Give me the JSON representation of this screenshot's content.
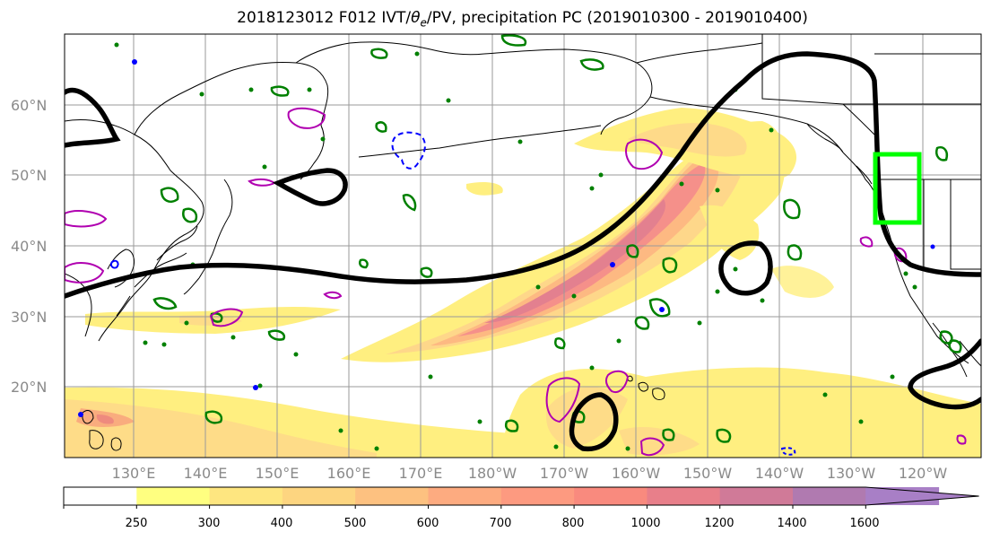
{
  "title": {
    "prefix": "2018123012 F012 IVT/",
    "theta": "θ",
    "theta_sub": "e",
    "suffix": "/PV, precipitation PC (2019010300 - 2019010400)"
  },
  "lat_labels": [
    "60°N",
    "50°N",
    "40°N",
    "30°N",
    "20°N"
  ],
  "lon_labels": [
    "130°E",
    "140°E",
    "150°E",
    "160°E",
    "170°E",
    "180°W",
    "170°W",
    "160°W",
    "150°W",
    "140°W",
    "130°W",
    "120°W"
  ],
  "colorbar": {
    "ticks": [
      "250",
      "300",
      "400",
      "500",
      "600",
      "700",
      "800",
      "1000",
      "1200",
      "1400",
      "1600"
    ],
    "colors": [
      "#ffffff",
      "#ffff80",
      "#fee680",
      "#fdd580",
      "#fdc180",
      "#fdab80",
      "#fd9a80",
      "#f98a7e",
      "#e87f8a",
      "#d07a98",
      "#b07ab0",
      "#a87fc6"
    ]
  },
  "colors": {
    "ivt_fill_low": "#ffef80",
    "ivt_fill_mid": "#fdbf80",
    "ivt_fill_high": "#ee8080",
    "theta_e_contour": "#000000",
    "pv_positive": "#b000b0",
    "pv_negative": "#0000ff",
    "precip_pc": "#008000",
    "target_box": "#00ff00",
    "grid": "#9a9a9a"
  }
}
